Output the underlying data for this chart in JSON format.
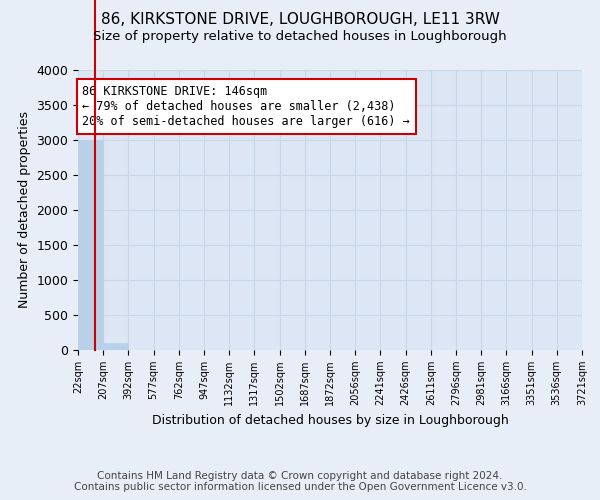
{
  "title": "86, KIRKSTONE DRIVE, LOUGHBOROUGH, LE11 3RW",
  "subtitle": "Size of property relative to detached houses in Loughborough",
  "xlabel": "Distribution of detached houses by size in Loughborough",
  "ylabel": "Number of detached properties",
  "bin_edges": [
    22,
    207,
    392,
    577,
    762,
    947,
    1132,
    1317,
    1502,
    1687,
    1872,
    2056,
    2241,
    2426,
    2611,
    2796,
    2981,
    3166,
    3351,
    3536,
    3721
  ],
  "bar_heights": [
    3000,
    100,
    0,
    0,
    0,
    0,
    0,
    0,
    0,
    0,
    0,
    0,
    0,
    0,
    0,
    0,
    0,
    0,
    0,
    0
  ],
  "bar_color": "#b8d0e8",
  "bar_edge_color": "#b8d0e8",
  "property_size": 146,
  "property_line_color": "#cc0000",
  "annotation_line1": "86 KIRKSTONE DRIVE: 146sqm",
  "annotation_line2": "← 79% of detached houses are smaller (2,438)",
  "annotation_line3": "20% of semi-detached houses are larger (616) →",
  "annotation_box_color": "#ffffff",
  "annotation_border_color": "#cc0000",
  "ylim": [
    0,
    4000
  ],
  "yticks": [
    0,
    500,
    1000,
    1500,
    2000,
    2500,
    3000,
    3500,
    4000
  ],
  "bg_color": "#e8eef7",
  "plot_bg_color": "#dce6f5",
  "grid_color": "#c8d8e8",
  "footer_line1": "Contains HM Land Registry data © Crown copyright and database right 2024.",
  "footer_line2": "Contains public sector information licensed under the Open Government Licence v3.0.",
  "title_fontsize": 11,
  "subtitle_fontsize": 9.5,
  "footer_fontsize": 7.5
}
